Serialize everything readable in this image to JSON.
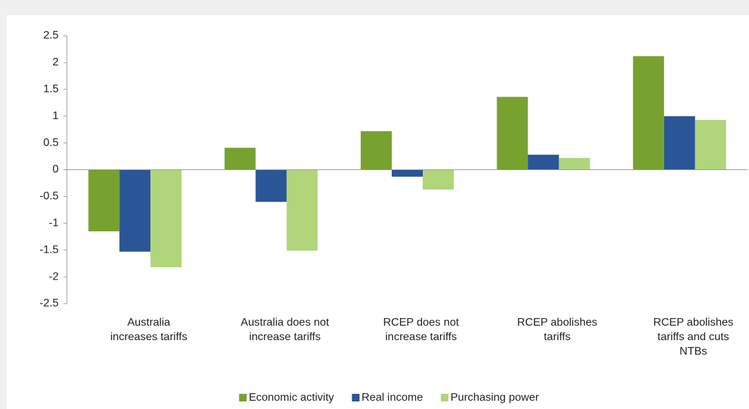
{
  "chart_data": {
    "type": "bar",
    "categories": [
      "Australia\nincreases tariffs",
      "Australia does not\nincrease tariffs",
      "RCEP does not\nincrease tariffs",
      "RCEP abolishes\ntariffs",
      "RCEP abolishes\ntariffs and cuts\nNTBs"
    ],
    "series": [
      {
        "name": "Economic activity",
        "color": "#77a22f",
        "values": [
          -1.15,
          0.41,
          0.72,
          1.36,
          2.12
        ]
      },
      {
        "name": "Real income",
        "color": "#2a5597",
        "values": [
          -1.53,
          -0.6,
          -0.13,
          0.28,
          1.0
        ]
      },
      {
        "name": "Purchasing power",
        "color": "#b0d57a",
        "values": [
          -1.82,
          -1.51,
          -0.37,
          0.22,
          0.93
        ]
      }
    ],
    "ylim": [
      -2.5,
      2.5
    ],
    "yticks": [
      -2.5,
      -2,
      -1.5,
      -1,
      -0.5,
      0,
      0.5,
      1,
      1.5,
      2,
      2.5
    ],
    "grid": false,
    "legend": "bottom"
  }
}
